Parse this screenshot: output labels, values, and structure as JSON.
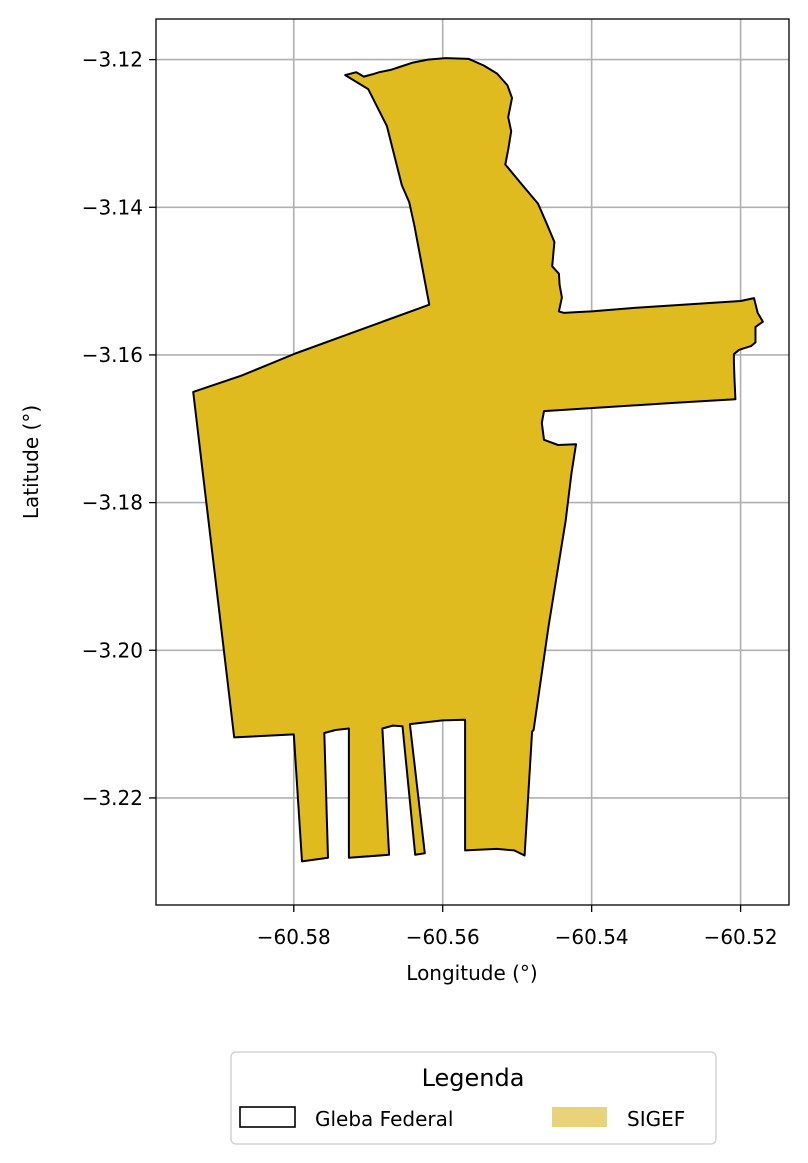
{
  "chart_data": {
    "type": "map",
    "xlabel": "Longitude (°)",
    "ylabel": "Latitude (°)",
    "xlim": [
      -60.5985,
      -60.5135
    ],
    "ylim": [
      -3.2345,
      -3.1145
    ],
    "xticks": [
      -60.58,
      -60.56,
      -60.54,
      -60.52
    ],
    "xtick_labels": [
      "−60.58",
      "−60.56",
      "−60.54",
      "−60.52"
    ],
    "yticks": [
      -3.12,
      -3.14,
      -3.16,
      -3.18,
      -3.2,
      -3.22
    ],
    "ytick_labels": [
      "−3.12",
      "−3.14",
      "−3.16",
      "−3.18",
      "−3.20",
      "−3.22"
    ],
    "grid": true,
    "colors": {
      "sigef_fill": "#dfbb20",
      "sigef_legend": "#e8d27a",
      "boundary": "#000000",
      "grid": "#b0b0b0"
    },
    "legend": {
      "title": "Legenda",
      "placement": "bottom-center",
      "items": [
        {
          "label": "Gleba Federal",
          "style": "outline"
        },
        {
          "label": "SIGEF",
          "style": "fill"
        }
      ]
    },
    "polygon": [
      [
        -60.5731,
        -3.1221
      ],
      [
        -60.5716,
        -3.1217
      ],
      [
        -60.5706,
        -3.1223
      ],
      [
        -60.5695,
        -3.122
      ],
      [
        -60.5685,
        -3.1217
      ],
      [
        -60.567,
        -3.1214
      ],
      [
        -60.5658,
        -3.121
      ],
      [
        -60.564,
        -3.1204
      ],
      [
        -60.562,
        -3.12
      ],
      [
        -60.5596,
        -3.1198
      ],
      [
        -60.5565,
        -3.1199
      ],
      [
        -60.5545,
        -3.1208
      ],
      [
        -60.5527,
        -3.1219
      ],
      [
        -60.5513,
        -3.1235
      ],
      [
        -60.5507,
        -3.1252
      ],
      [
        -60.5512,
        -3.1278
      ],
      [
        -60.5508,
        -3.1297
      ],
      [
        -60.5512,
        -3.1322
      ],
      [
        -60.5516,
        -3.1342
      ],
      [
        -60.5493,
        -3.137
      ],
      [
        -60.5472,
        -3.1395
      ],
      [
        -60.546,
        -3.1423
      ],
      [
        -60.545,
        -3.1447
      ],
      [
        -60.5453,
        -3.148
      ],
      [
        -60.5444,
        -3.149
      ],
      [
        -60.5443,
        -3.1505
      ],
      [
        -60.544,
        -3.1522
      ],
      [
        -60.5444,
        -3.1541
      ],
      [
        -60.5437,
        -3.1543
      ],
      [
        -60.542,
        -3.1542
      ],
      [
        -60.54,
        -3.1541
      ],
      [
        -60.534,
        -3.1536
      ],
      [
        -60.52,
        -3.1527
      ],
      [
        -60.5182,
        -3.1523
      ],
      [
        -60.5177,
        -3.1543
      ],
      [
        -60.517,
        -3.1555
      ],
      [
        -60.518,
        -3.1562
      ],
      [
        -60.518,
        -3.1583
      ],
      [
        -60.5186,
        -3.1588
      ],
      [
        -60.5202,
        -3.1593
      ],
      [
        -60.5209,
        -3.1599
      ],
      [
        -60.5209,
        -3.1611
      ],
      [
        -60.5208,
        -3.1636
      ],
      [
        -60.5207,
        -3.166
      ],
      [
        -60.529,
        -3.1665
      ],
      [
        -60.5464,
        -3.1676
      ],
      [
        -60.5467,
        -3.1692
      ],
      [
        -60.5464,
        -3.1715
      ],
      [
        -60.5445,
        -3.1722
      ],
      [
        -60.5421,
        -3.1721
      ],
      [
        -60.5427,
        -3.176
      ],
      [
        -60.5435,
        -3.1825
      ],
      [
        -60.5458,
        -3.1968
      ],
      [
        -60.5478,
        -3.2108
      ],
      [
        -60.548,
        -3.211
      ],
      [
        -60.549,
        -3.2278
      ],
      [
        -60.5504,
        -3.2271
      ],
      [
        -60.5527,
        -3.2269
      ],
      [
        -60.557,
        -3.2271
      ],
      [
        -60.557,
        -3.2094
      ],
      [
        -60.56,
        -3.2095
      ],
      [
        -60.5644,
        -3.21
      ],
      [
        -60.5624,
        -3.2275
      ],
      [
        -60.5637,
        -3.2277
      ],
      [
        -60.5654,
        -3.2103
      ],
      [
        -60.5667,
        -3.2102
      ],
      [
        -60.5681,
        -3.2106
      ],
      [
        -60.5672,
        -3.2277
      ],
      [
        -60.5726,
        -3.2281
      ],
      [
        -60.5726,
        -3.2106
      ],
      [
        -60.5744,
        -3.2108
      ],
      [
        -60.5759,
        -3.2112
      ],
      [
        -60.5754,
        -3.2281
      ],
      [
        -60.5789,
        -3.2286
      ],
      [
        -60.58,
        -3.2114
      ],
      [
        -60.588,
        -3.2118
      ],
      [
        -60.5935,
        -3.165
      ],
      [
        -60.587,
        -3.1628
      ],
      [
        -60.5798,
        -3.1598
      ],
      [
        -60.57,
        -3.1562
      ],
      [
        -60.5618,
        -3.1532
      ],
      [
        -60.5638,
        -3.1425
      ],
      [
        -60.5645,
        -3.1393
      ],
      [
        -60.5655,
        -3.137
      ],
      [
        -60.5675,
        -3.129
      ],
      [
        -60.57,
        -3.124
      ],
      [
        -60.5731,
        -3.1221
      ]
    ]
  }
}
